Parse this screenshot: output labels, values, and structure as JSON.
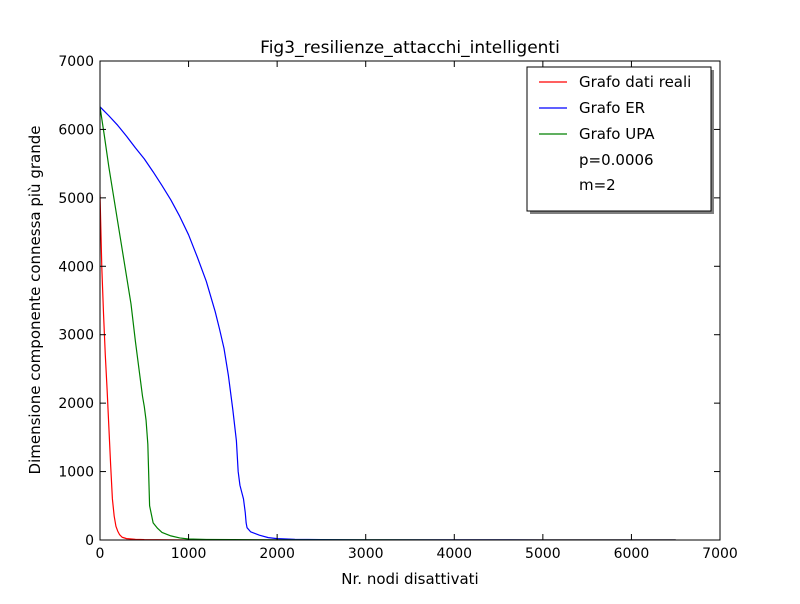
{
  "chart_data": {
    "type": "line",
    "title": "Fig3_resilienze_attacchi_intelligenti",
    "xlabel": "Nr. nodi disattivati",
    "ylabel": "Dimensione componente connessa più grande",
    "xlim": [
      0,
      7000
    ],
    "ylim": [
      0,
      7000
    ],
    "xticks": [
      0,
      1000,
      2000,
      3000,
      4000,
      5000,
      6000,
      7000
    ],
    "yticks": [
      0,
      1000,
      2000,
      3000,
      4000,
      5000,
      6000,
      7000
    ],
    "grid": false,
    "legend_position": "top-right",
    "legend_notes": [
      "p=0.0006",
      "m=2"
    ],
    "series": [
      {
        "name": "Grafo dati reali",
        "color": "#ff0000",
        "x": [
          0,
          20,
          40,
          60,
          80,
          100,
          120,
          140,
          160,
          180,
          200,
          220,
          250,
          300,
          400,
          500,
          800,
          1000,
          6500
        ],
        "y": [
          5050,
          4000,
          3300,
          2700,
          2200,
          1650,
          1100,
          600,
          350,
          200,
          130,
          80,
          40,
          20,
          10,
          5,
          2,
          1,
          1
        ]
      },
      {
        "name": "Grafo ER",
        "color": "#0000ff",
        "x": [
          0,
          100,
          200,
          300,
          400,
          500,
          600,
          700,
          800,
          900,
          1000,
          1100,
          1200,
          1300,
          1350,
          1400,
          1450,
          1500,
          1540,
          1560,
          1580,
          1600,
          1620,
          1640,
          1650,
          1660,
          1700,
          1800,
          1900,
          2000,
          2200,
          2500,
          3000,
          4000,
          5000,
          6000,
          6500
        ],
        "y": [
          6330,
          6200,
          6060,
          5900,
          5730,
          5570,
          5380,
          5180,
          4970,
          4730,
          4460,
          4130,
          3780,
          3340,
          3080,
          2800,
          2400,
          1900,
          1450,
          1000,
          800,
          700,
          600,
          400,
          250,
          180,
          120,
          70,
          35,
          20,
          10,
          5,
          3,
          2,
          1,
          1,
          1
        ]
      },
      {
        "name": "Grafo UPA",
        "color": "#008000",
        "x": [
          0,
          50,
          100,
          150,
          200,
          250,
          300,
          350,
          400,
          450,
          480,
          500,
          520,
          540,
          560,
          600,
          650,
          700,
          800,
          900,
          1000,
          1200,
          1500,
          2000,
          3000,
          4000,
          5000,
          6000,
          6500
        ],
        "y": [
          6330,
          5900,
          5450,
          5050,
          4650,
          4250,
          3850,
          3450,
          2900,
          2400,
          2100,
          1950,
          1750,
          1400,
          500,
          250,
          170,
          110,
          60,
          30,
          15,
          8,
          5,
          3,
          2,
          1,
          1,
          1,
          1
        ]
      }
    ]
  }
}
